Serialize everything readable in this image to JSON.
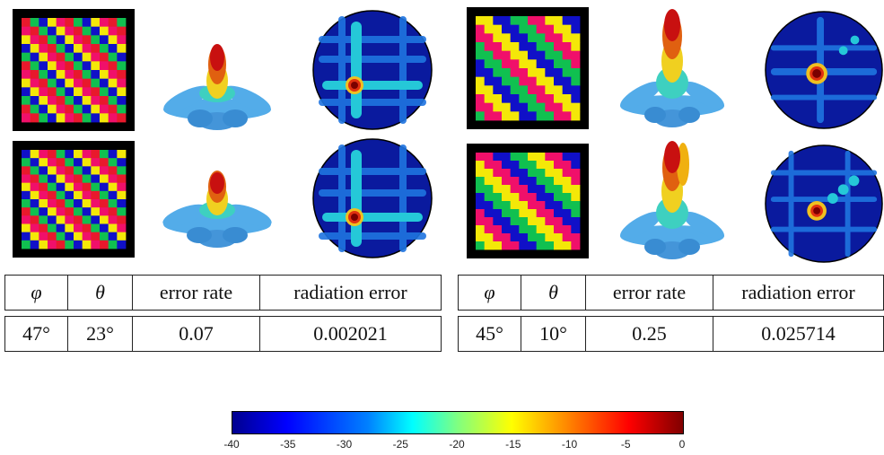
{
  "panels": [
    {
      "id": "left",
      "headers": [
        "φ",
        "θ",
        "error rate",
        "radiation error"
      ],
      "values": [
        "47°",
        "23°",
        "0.07",
        "0.002021"
      ]
    },
    {
      "id": "right",
      "headers": [
        "φ",
        "θ",
        "error rate",
        "radiation error"
      ],
      "values": [
        "45°",
        "10°",
        "0.25",
        "0.025714"
      ]
    }
  ],
  "colorbar": {
    "colormap": "jet",
    "ticks": [
      "-40",
      "-35",
      "-30",
      "-25",
      "-20",
      "-15",
      "-10",
      "-5",
      "0"
    ]
  },
  "colors": {
    "red": "#e8192c",
    "green": "#10c050",
    "blue": "#1010c8",
    "yellow": "#f4e808",
    "magenta": "#f0106a",
    "frame": "#000000"
  }
}
